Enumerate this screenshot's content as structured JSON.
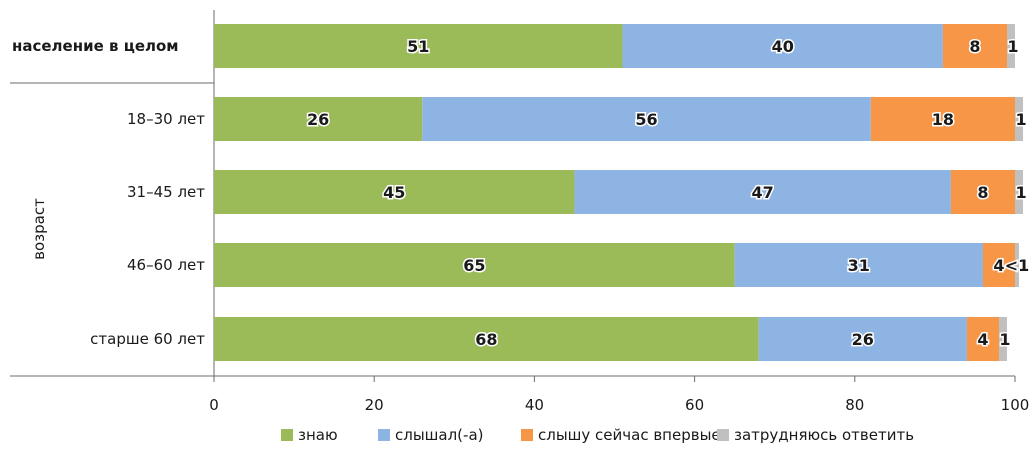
{
  "chart_data": {
    "type": "bar",
    "orientation": "horizontal",
    "stacked": true,
    "categories": [
      "население в целом",
      "18–30 лет",
      "31–45 лет",
      "46–60 лет",
      "старше 60 лет"
    ],
    "highlight_category": "население в целом",
    "group_label": "возраст",
    "series": [
      {
        "name": "знаю",
        "color": "#9bbb59",
        "values": [
          51,
          26,
          45,
          65,
          68
        ]
      },
      {
        "name": "слышал(-а)",
        "color": "#8eb4e3",
        "values": [
          40,
          56,
          47,
          31,
          26
        ]
      },
      {
        "name": "слышу сейчас впервые",
        "color": "#f79646",
        "values": [
          8,
          18,
          8,
          4,
          4
        ]
      },
      {
        "name": "затрудняюсь ответить",
        "color": "#c0c0c0",
        "values": [
          1,
          1,
          1,
          0.5,
          1
        ]
      }
    ],
    "data_labels": [
      [
        "51",
        "40",
        "8",
        "1"
      ],
      [
        "26",
        "56",
        "18",
        "1"
      ],
      [
        "45",
        "47",
        "8",
        "1"
      ],
      [
        "65",
        "31",
        "4",
        "<1"
      ],
      [
        "68",
        "26",
        "4",
        "1"
      ]
    ],
    "xlim": [
      0,
      100
    ],
    "xticks": [
      "0",
      "20",
      "40",
      "60",
      "80",
      "100"
    ],
    "grid": false,
    "legend_position": "bottom"
  }
}
